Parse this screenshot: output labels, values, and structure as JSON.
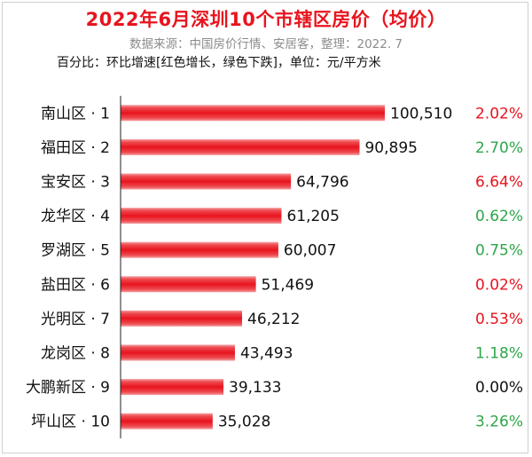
{
  "colors": {
    "title": "#e8141e",
    "up": "#e8141e",
    "down": "#2ea64a",
    "flat": "#111111",
    "bar": "#e8141e"
  },
  "chart_data": {
    "type": "bar",
    "orientation": "horizontal",
    "title": "2022年6月深圳10个市辖区房价（均价）",
    "subtitle": "数据来源：中国房价行情、安居客，整理：2022. 7",
    "note": "百分比：环比增速[红色增长，绿色下跌]，单位：元/平方米",
    "grid": false,
    "categories": [
      "南山区 · 1",
      "福田区 · 2",
      "宝安区 · 3",
      "龙华区 · 4",
      "罗湖区 · 5",
      "盐田区 · 6",
      "光明区 · 7",
      "龙岗区 · 8",
      "大鹏新区 · 9",
      "坪山区 · 10"
    ],
    "values": [
      100510,
      90895,
      64796,
      61205,
      60007,
      51469,
      46212,
      43493,
      39133,
      35028
    ],
    "value_labels": [
      "100,510",
      "90,895",
      "64,796",
      "61,205",
      "60,007",
      "51,469",
      "46,212",
      "43,493",
      "39,133",
      "35,028"
    ],
    "change_labels": [
      "2.02%",
      "2.70%",
      "6.64%",
      "0.62%",
      "0.75%",
      "0.02%",
      "0.53%",
      "1.18%",
      "0.00%",
      "3.26%"
    ],
    "change_direction": [
      "up",
      "down",
      "up",
      "down",
      "down",
      "up",
      "up",
      "down",
      "flat",
      "down"
    ]
  }
}
